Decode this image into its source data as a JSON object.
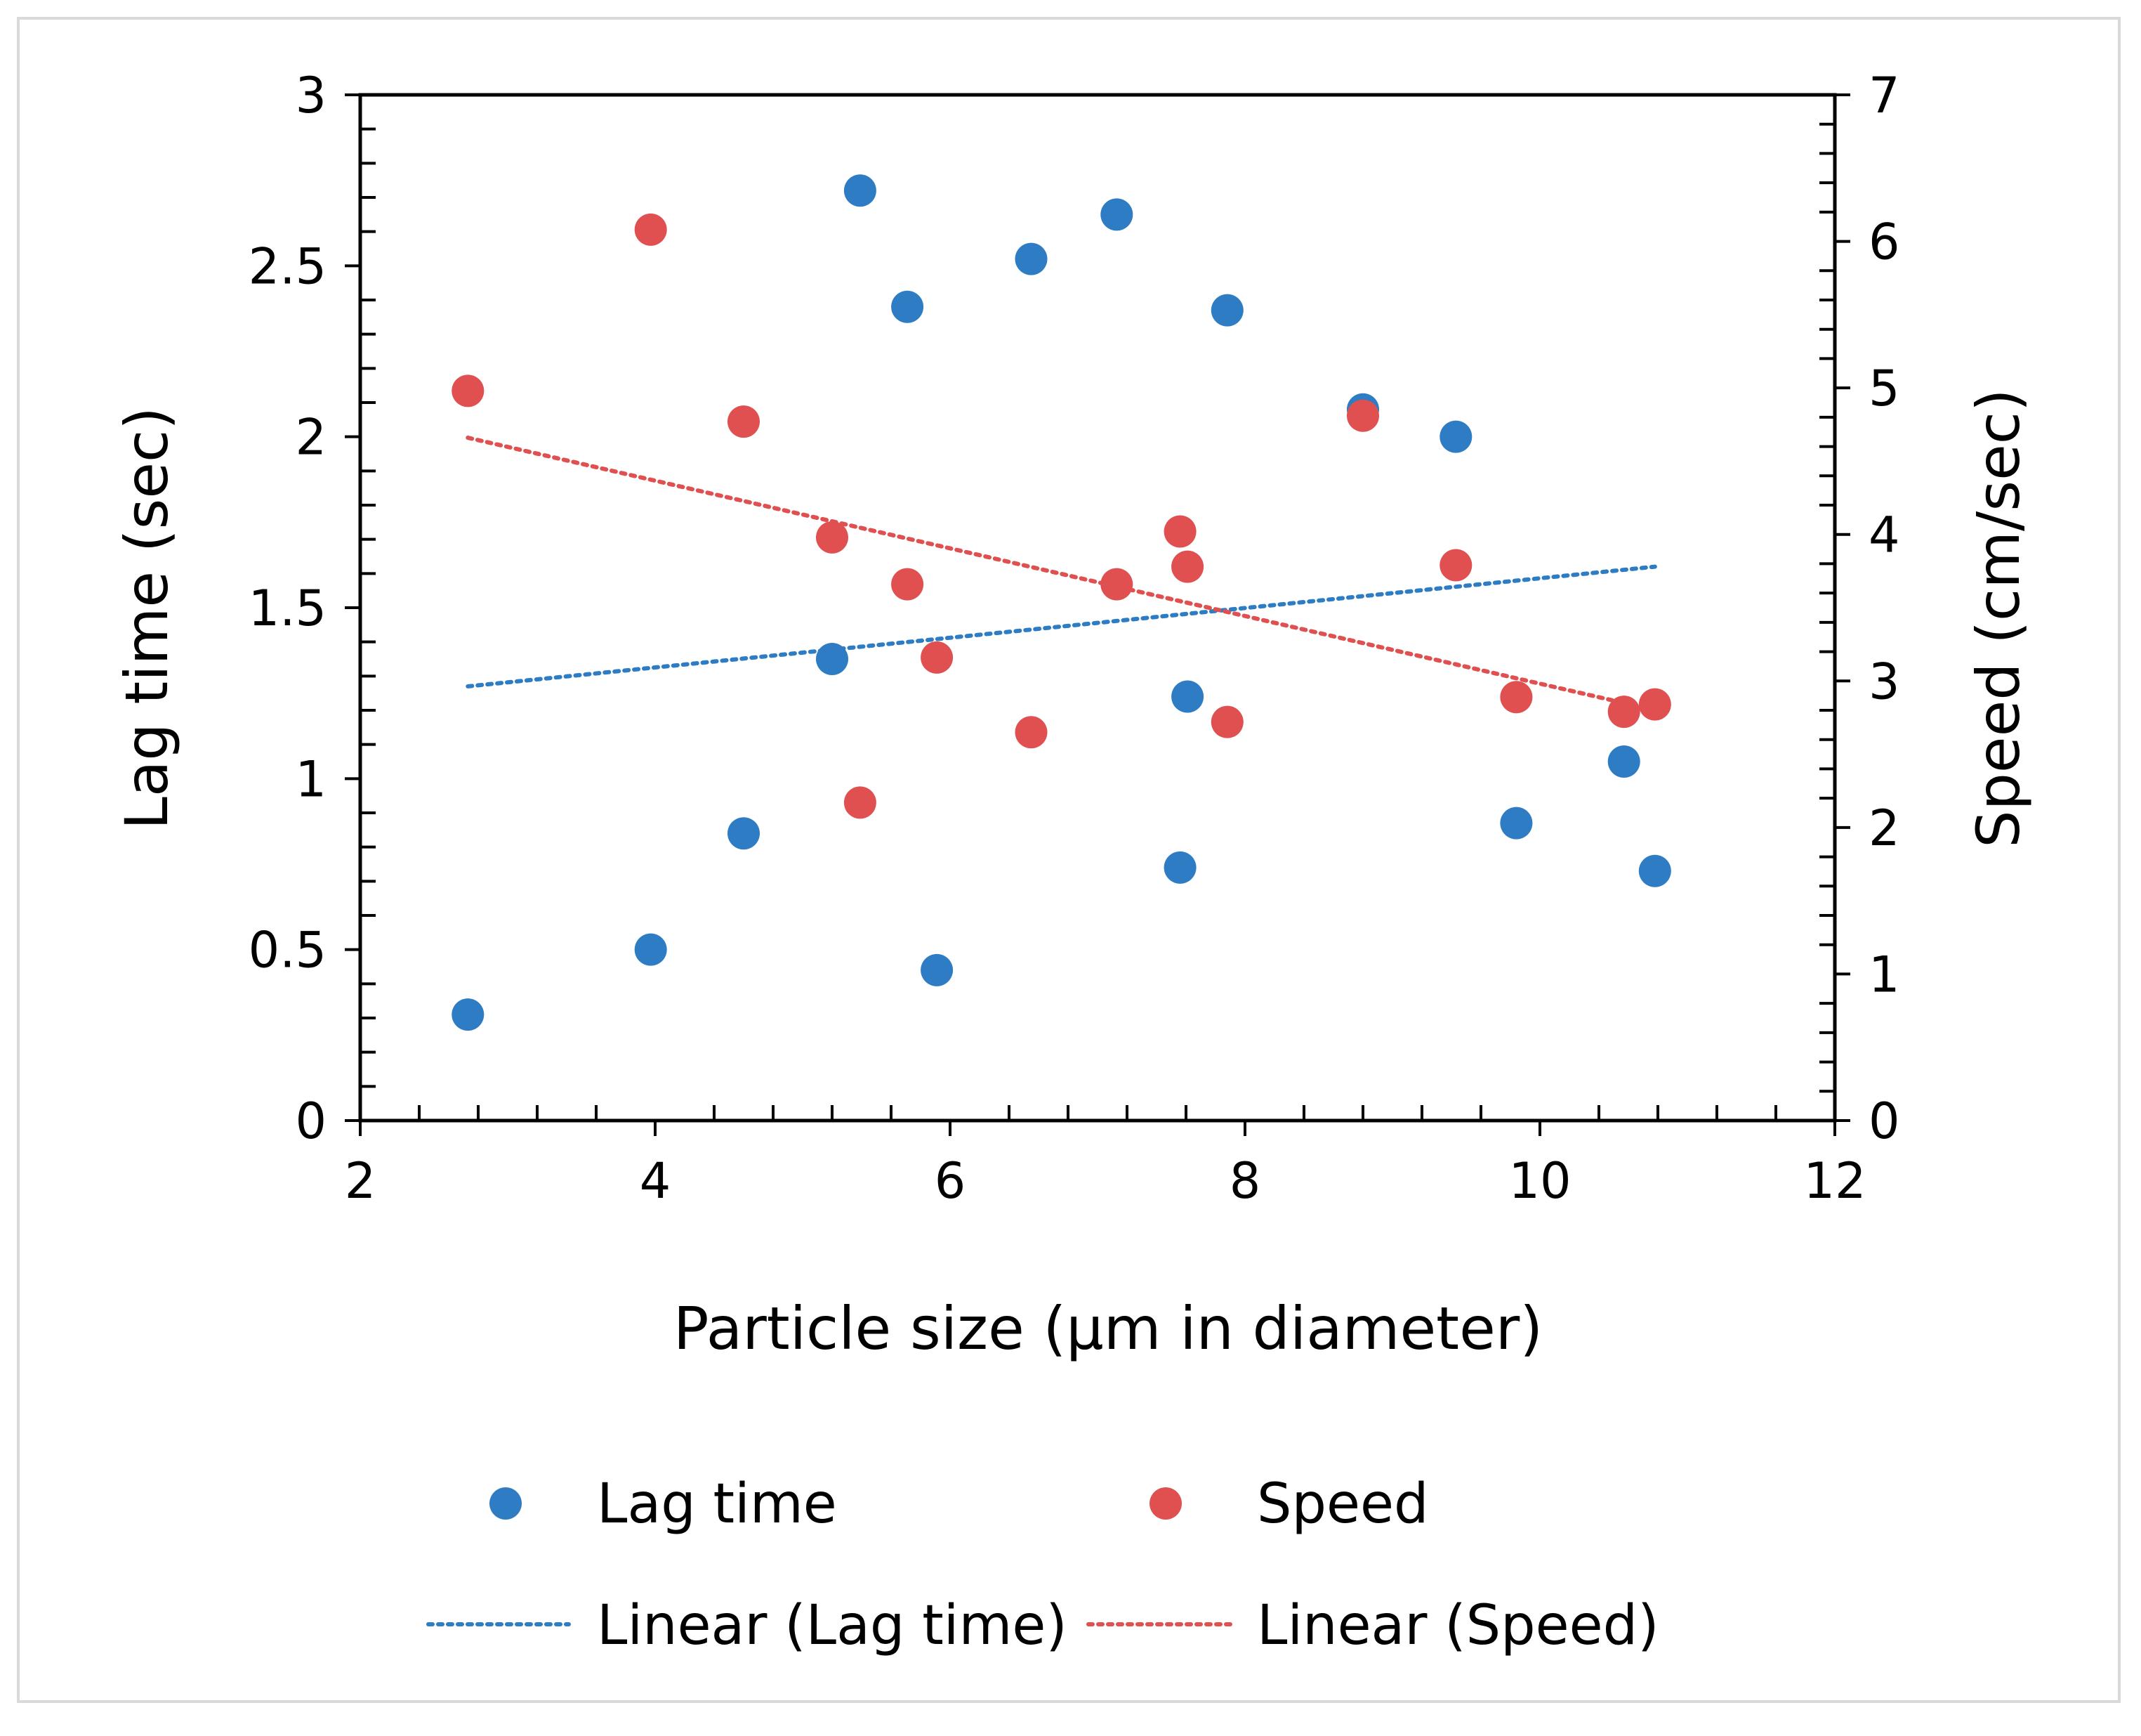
{
  "chart_data": {
    "type": "scatter",
    "title": "",
    "xlabel": "Particle size (µm in diameter)",
    "ylabel_left": "Lag time (sec)",
    "ylabel_right": "Speed  (cm/sec)",
    "xlim": [
      2,
      12
    ],
    "ylim_left": [
      0,
      3
    ],
    "ylim_right": [
      0,
      7
    ],
    "xticks": [
      "2",
      "4",
      "6",
      "8",
      "10",
      "12"
    ],
    "yticks_left": [
      "0",
      "0.5",
      "1",
      "1.5",
      "2",
      "2.5",
      "3"
    ],
    "yticks_right": [
      "0",
      "1",
      "2",
      "3",
      "4",
      "5",
      "6",
      "7"
    ],
    "grid": false,
    "legend_position": "bottom",
    "series": [
      {
        "name": "Lag time",
        "axis": "left",
        "color": "#2e7dc4",
        "x": [
          2.73,
          3.97,
          4.6,
          5.2,
          5.39,
          5.71,
          5.91,
          6.55,
          7.13,
          7.56,
          7.61,
          7.88,
          8.8,
          9.43,
          9.84,
          10.57,
          10.78
        ],
        "y": [
          0.31,
          0.5,
          0.84,
          1.35,
          2.72,
          2.38,
          0.44,
          2.52,
          2.65,
          0.74,
          1.24,
          2.37,
          2.08,
          2.0,
          0.87,
          1.05,
          0.73
        ]
      },
      {
        "name": "Speed",
        "axis": "right",
        "color": "#e05050",
        "x": [
          2.73,
          3.97,
          4.6,
          5.2,
          5.39,
          5.71,
          5.91,
          6.55,
          7.13,
          7.56,
          7.61,
          7.88,
          8.8,
          9.43,
          9.84,
          10.57,
          10.78
        ],
        "y": [
          4.98,
          6.08,
          4.77,
          3.98,
          2.17,
          3.66,
          3.16,
          2.65,
          3.66,
          4.02,
          3.78,
          2.72,
          4.81,
          3.79,
          2.89,
          2.79,
          2.84
        ]
      }
    ],
    "trendlines": [
      {
        "name": "Linear (Lag time)",
        "axis": "left",
        "color": "#2e7dc4",
        "x": [
          2.73,
          10.78
        ],
        "y": [
          1.27,
          1.62
        ]
      },
      {
        "name": "Linear (Speed)",
        "axis": "right",
        "color": "#e05050",
        "x": [
          2.73,
          10.57
        ],
        "y": [
          4.66,
          2.85
        ]
      }
    ],
    "legend": [
      {
        "label": "Lag time",
        "kind": "marker",
        "color": "#2e7dc4"
      },
      {
        "label": "Speed",
        "kind": "marker",
        "color": "#e05050"
      },
      {
        "label": "Linear (Lag time)",
        "kind": "dotted-line",
        "color": "#2e7dc4"
      },
      {
        "label": "Linear (Speed)",
        "kind": "dotted-line",
        "color": "#e05050"
      }
    ]
  }
}
